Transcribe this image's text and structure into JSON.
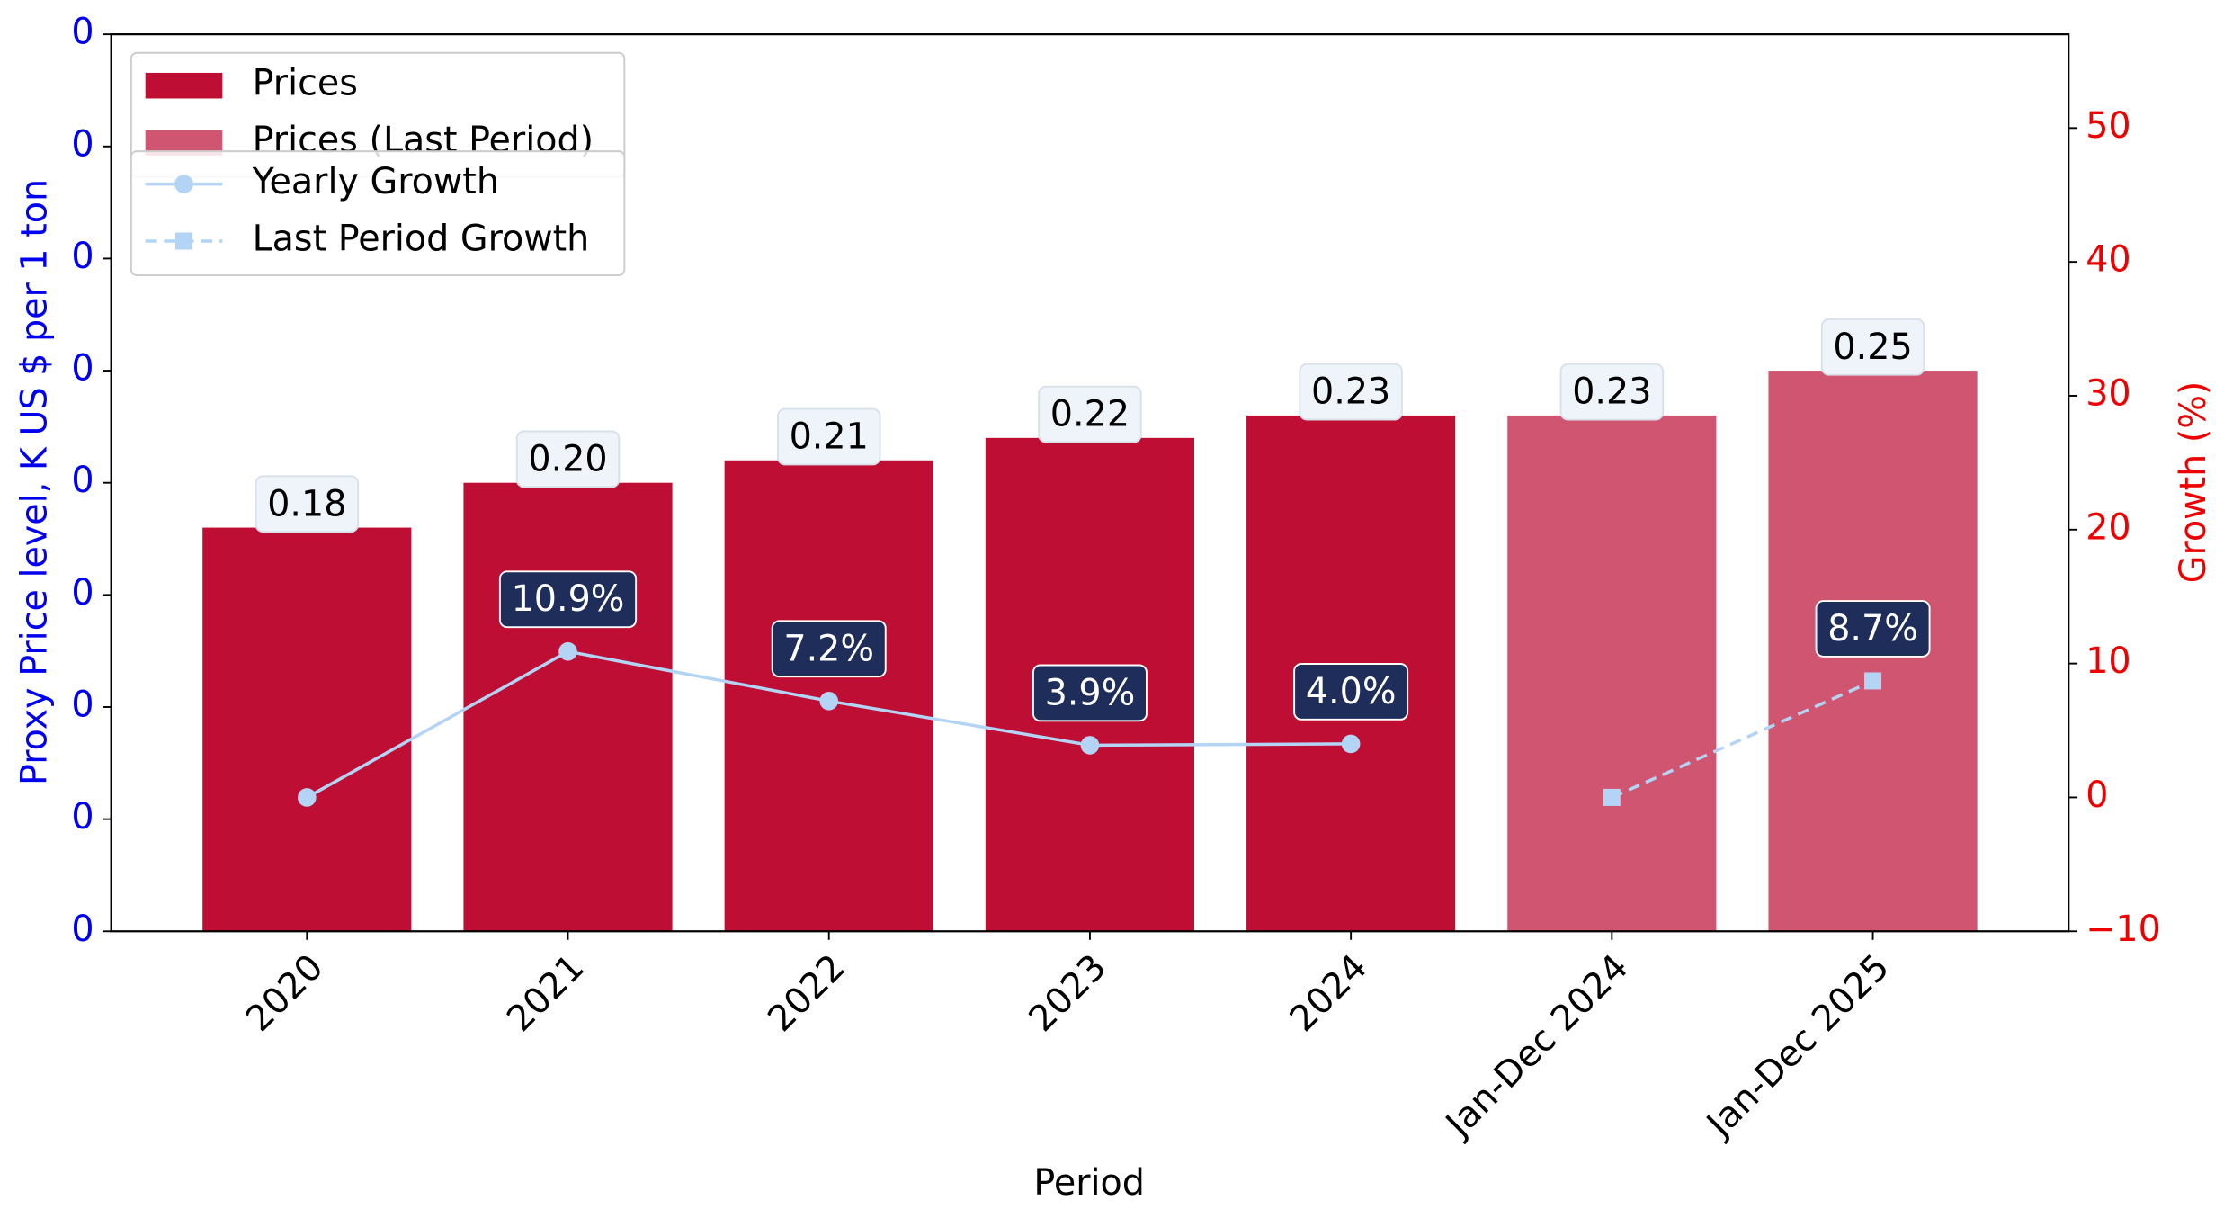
{
  "chart_data": {
    "type": "bar",
    "x_label": "Period",
    "y_label": "Proxy Price level, K US $ per 1 ton",
    "y2_label": "Growth (%)",
    "categories": [
      "2020",
      "2021",
      "2022",
      "2023",
      "2024",
      "Jan-Dec 2024",
      "Jan-Dec 2025"
    ],
    "series": [
      {
        "name": "Prices",
        "type": "bar",
        "color": "#be0e33",
        "values": [
          0.18,
          0.2,
          0.21,
          0.22,
          0.23,
          null,
          null
        ],
        "value_labels": [
          "0.18",
          "0.20",
          "0.21",
          "0.22",
          "0.23",
          null,
          null
        ]
      },
      {
        "name": "Prices (Last Period)",
        "type": "bar",
        "color": "#d05570",
        "values": [
          null,
          null,
          null,
          null,
          null,
          0.23,
          0.25
        ],
        "value_labels": [
          null,
          null,
          null,
          null,
          null,
          "0.23",
          "0.25"
        ]
      },
      {
        "name": "Yearly Growth",
        "type": "line",
        "axis": "y2",
        "color": "#b3d4f5",
        "marker": "circle",
        "linestyle": "solid",
        "values": [
          0,
          10.9,
          7.2,
          3.9,
          4.0,
          null,
          null
        ],
        "value_labels": [
          null,
          "10.9%",
          "7.2%",
          "3.9%",
          "4.0%",
          null,
          null
        ]
      },
      {
        "name": "Last Period Growth",
        "type": "line",
        "axis": "y2",
        "color": "#b3d4f5",
        "marker": "square",
        "linestyle": "dashed",
        "values": [
          null,
          null,
          null,
          null,
          null,
          0,
          8.7
        ],
        "value_labels": [
          null,
          null,
          null,
          null,
          null,
          null,
          "8.7%"
        ]
      }
    ],
    "ylim": [
      0,
      0.4
    ],
    "yticks": [
      0,
      {
        "value": 0.05,
        "label": "0"
      },
      {
        "value": 0.1,
        "label": "0"
      },
      {
        "value": 0.15,
        "label": "0"
      },
      {
        "value": 0.2,
        "label": "0"
      },
      {
        "value": 0.25,
        "label": "0"
      },
      {
        "value": 0.3,
        "label": "0"
      },
      {
        "value": 0.35,
        "label": "0"
      },
      {
        "value": 0.4,
        "label": "0"
      }
    ],
    "y_color": "#0000ee",
    "y2lim": [
      -10,
      57
    ],
    "y2ticks": [
      {
        "value": -10,
        "label": "−10"
      },
      0,
      10,
      20,
      30,
      40,
      50
    ],
    "y2_color": "#ee0000",
    "legend": "upper left",
    "grid": false
  }
}
